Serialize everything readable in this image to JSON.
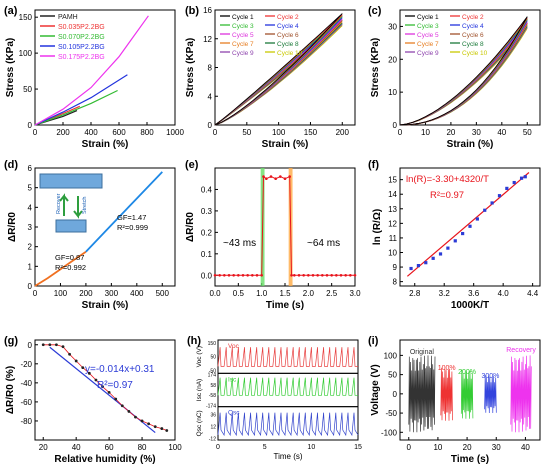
{
  "panels": {
    "a": {
      "label": "(a)"
    },
    "b": {
      "label": "(b)"
    },
    "c": {
      "label": "(c)"
    },
    "d": {
      "label": "(d)"
    },
    "e": {
      "label": "(e)"
    },
    "f": {
      "label": "(f)"
    },
    "g": {
      "label": "(g)"
    },
    "h": {
      "label": "(h)"
    },
    "i": {
      "label": "(i)"
    }
  },
  "colors": {
    "pamh": "#222222",
    "s0_035": "#ee3333",
    "s0_070": "#33bb33",
    "s0_105": "#2233dd",
    "s0_175": "#ee33ee",
    "fit_red": "#e8141c",
    "fit_blue": "#2b3bd6",
    "gf_orange": "#f07020",
    "gf_blue": "#1e88e5",
    "voc": "#e84040",
    "isc": "#33cc33",
    "qsc": "#3344cc"
  },
  "chart_data": [
    {
      "id": "a",
      "type": "line",
      "xlabel": "Strain (%)",
      "ylabel": "Stress (KPa)",
      "xlim": [
        0,
        1000
      ],
      "ylim": [
        0,
        160
      ],
      "xticks": [
        "0",
        "200",
        "400",
        "600",
        "800",
        "1000"
      ],
      "yticks": [
        "0",
        "50",
        "100",
        "150"
      ],
      "legend": "top-left",
      "series": [
        {
          "name": "PAMH",
          "x": [
            0,
            100,
            200,
            300
          ],
          "y": [
            0,
            6,
            12,
            20
          ]
        },
        {
          "name": "S0.035P2.2BG",
          "x": [
            0,
            100,
            200,
            320
          ],
          "y": [
            0,
            8,
            16,
            26
          ]
        },
        {
          "name": "S0.070P2.2BG",
          "x": [
            0,
            200,
            400,
            590
          ],
          "y": [
            0,
            14,
            30,
            48
          ]
        },
        {
          "name": "S0.105P2.2BG",
          "x": [
            0,
            200,
            400,
            660
          ],
          "y": [
            0,
            18,
            38,
            70
          ]
        },
        {
          "name": "S0.175P2.2BG",
          "x": [
            0,
            200,
            400,
            600,
            810
          ],
          "y": [
            0,
            22,
            52,
            95,
            152
          ]
        }
      ]
    },
    {
      "id": "b",
      "type": "line",
      "xlabel": "Strain (%)",
      "ylabel": "Stress (KPa)",
      "xlim": [
        0,
        220
      ],
      "ylim": [
        0,
        16
      ],
      "xticks": [
        "0",
        "50",
        "100",
        "150",
        "200"
      ],
      "yticks": [
        "0",
        "4",
        "8",
        "12",
        "16"
      ],
      "legend": "top-left",
      "series_names": [
        "Cycle 1",
        "Cycle 2",
        "Cycle 3",
        "Cycle 4",
        "Cycle 5",
        "Cycle 6",
        "Cycle 7",
        "Cycle 8",
        "Cycle 9",
        "Cycle 10"
      ],
      "series_colors": [
        "#000000",
        "#ee3333",
        "#33bb33",
        "#2233dd",
        "#dd33dd",
        "#a0522d",
        "#e67e22",
        "#1b7a3a",
        "#8e44ad",
        "#c8c800"
      ],
      "peak_stress": 15.5,
      "max_strain": 200
    },
    {
      "id": "c",
      "type": "line",
      "xlabel": "Strain (%)",
      "ylabel": "Stress (KPa)",
      "xlim": [
        0,
        55
      ],
      "ylim": [
        0,
        35
      ],
      "xticks": [
        "0",
        "10",
        "20",
        "30",
        "40",
        "50"
      ],
      "yticks": [
        "0",
        "10",
        "20",
        "30"
      ],
      "legend": "top-left",
      "series_names": [
        "Cycle 1",
        "Cycle 2",
        "Cycle 3",
        "Cycle 4",
        "Cycle 5",
        "Cycle 6",
        "Cycle 7",
        "Cycle 8",
        "Cycle 9",
        "Cycle 10"
      ],
      "series_colors": [
        "#000000",
        "#ee3333",
        "#33bb33",
        "#2233dd",
        "#dd33dd",
        "#a0522d",
        "#e67e22",
        "#1b7a3a",
        "#8e44ad",
        "#c8c800"
      ],
      "peak_stress": 33,
      "max_strain": 50
    },
    {
      "id": "d",
      "type": "line",
      "xlabel": "Strain (%)",
      "ylabel": "ΔR/R0",
      "xlim": [
        0,
        550
      ],
      "ylim": [
        0,
        6
      ],
      "xticks": [
        "0",
        "100",
        "200",
        "300",
        "400",
        "500"
      ],
      "yticks": [
        "0",
        "1",
        "2",
        "3",
        "4",
        "5",
        "6"
      ],
      "annotations": [
        "GF=1.47",
        "R²=0.999",
        "GF=0.87",
        "R²=0.992",
        "Recover",
        "Stretch"
      ],
      "series": [
        {
          "x": [
            0,
            50,
            100,
            150,
            200
          ],
          "y": [
            0,
            0.4,
            0.85,
            1.3,
            1.74
          ]
        },
        {
          "x": [
            200,
            300,
            400,
            500
          ],
          "y": [
            1.74,
            3.1,
            4.45,
            5.8
          ]
        }
      ]
    },
    {
      "id": "e",
      "type": "line",
      "xlabel": "Time (s)",
      "ylabel": "ΔR/R0",
      "xlim": [
        0,
        3
      ],
      "ylim": [
        -0.05,
        0.5
      ],
      "xticks": [
        "0.0",
        "0.5",
        "1.0",
        "1.5",
        "2.0",
        "2.5",
        "3.0"
      ],
      "yticks": [
        "0.0",
        "0.1",
        "0.2",
        "0.3",
        "0.4"
      ],
      "annotations": [
        "~43 ms",
        "~64 ms"
      ],
      "x": [
        0,
        0.1,
        0.2,
        0.3,
        0.4,
        0.5,
        0.6,
        0.7,
        0.8,
        0.9,
        1.0,
        1.04,
        1.1,
        1.2,
        1.3,
        1.4,
        1.5,
        1.6,
        1.64,
        1.7,
        1.8,
        1.9,
        2.0,
        2.1,
        2.2,
        2.3,
        2.4,
        2.5,
        2.6,
        2.7,
        2.8,
        2.9,
        3.0
      ],
      "y": [
        0,
        0,
        0,
        0,
        0,
        0,
        0,
        0,
        0,
        0,
        0,
        0.46,
        0.45,
        0.46,
        0.45,
        0.46,
        0.45,
        0.46,
        0,
        0,
        0,
        0,
        0,
        0,
        0,
        0,
        0,
        0,
        0,
        0,
        0,
        0,
        0
      ]
    },
    {
      "id": "f",
      "type": "scatter",
      "xlabel": "1000K/T",
      "ylabel": "ln (R/Ω)",
      "xlim": [
        2.6,
        4.5
      ],
      "ylim": [
        7.7,
        15.8
      ],
      "xticks": [
        "2.8",
        "3.2",
        "3.6",
        "4.0",
        "4.4"
      ],
      "yticks": [
        "8",
        "9",
        "10",
        "11",
        "12",
        "13",
        "14",
        "15"
      ],
      "annotations": [
        "ln(R)=-3.30+4320/T",
        "R²=0.97"
      ],
      "fit": {
        "slope": 4.32,
        "intercept": -3.3
      },
      "x": [
        2.75,
        2.85,
        2.95,
        3.05,
        3.15,
        3.25,
        3.35,
        3.45,
        3.55,
        3.65,
        3.75,
        3.85,
        3.95,
        4.05,
        4.15,
        4.25,
        4.3
      ],
      "y": [
        8.9,
        9.1,
        9.3,
        9.6,
        9.9,
        10.3,
        10.8,
        11.3,
        11.8,
        12.3,
        12.9,
        13.4,
        13.9,
        14.4,
        14.8,
        15.1,
        15.2
      ]
    },
    {
      "id": "g",
      "type": "scatter",
      "xlabel": "Relative humidity (%)",
      "ylabel": "ΔR/R0 (%)",
      "xlim": [
        15,
        100
      ],
      "ylim": [
        -1.0,
        0.05
      ],
      "xticks": [
        "20",
        "40",
        "60",
        "80",
        "100"
      ],
      "yticks": [
        "0",
        "-20",
        "-40",
        "-60",
        "-80"
      ],
      "annotations": [
        "y=-0.014x+0.31",
        "R²=0.97"
      ],
      "fit": {
        "slope": -0.014,
        "intercept": 0.31
      },
      "x": [
        20,
        24,
        28,
        32,
        36,
        40,
        44,
        48,
        52,
        56,
        60,
        64,
        68,
        72,
        76,
        80,
        84,
        88,
        92,
        95
      ],
      "y": [
        0,
        0,
        0,
        -0.02,
        -0.1,
        -0.17,
        -0.24,
        -0.3,
        -0.37,
        -0.44,
        -0.5,
        -0.57,
        -0.64,
        -0.7,
        -0.76,
        -0.8,
        -0.83,
        -0.86,
        -0.88,
        -0.9
      ]
    },
    {
      "id": "h",
      "type": "line",
      "xlabel": "Time (s)",
      "xlim": [
        0,
        15
      ],
      "xticks": [
        "0",
        "5",
        "10",
        "15"
      ],
      "subplots": [
        {
          "ylabel": "Voc (V)",
          "label": "Voc",
          "yticks": [
            "-50",
            "0",
            "50",
            "100",
            "150"
          ],
          "ylim": [
            -70,
            170
          ],
          "high": 118,
          "low": -20,
          "cycles": 23
        },
        {
          "ylabel": "Isc (nA)",
          "label": "Isc",
          "yticks": [
            "-174",
            "-116",
            "-58",
            "0",
            "58",
            "116",
            "174"
          ],
          "ylim": [
            -190,
            190
          ],
          "high": 140,
          "low": -60,
          "cycles": 23
        },
        {
          "ylabel": "Qsc (nC)",
          "label": "Qsc",
          "yticks": [
            "-12",
            "0",
            "12",
            "24",
            "36",
            "48"
          ],
          "ylim": [
            -15,
            52
          ],
          "high": 40,
          "low": -5,
          "cycles": 23
        }
      ]
    },
    {
      "id": "i",
      "type": "line",
      "xlabel": "Time (s)",
      "ylabel": "Voltage (V)",
      "xlim": [
        -3,
        45
      ],
      "ylim": [
        -120,
        140
      ],
      "xticks": [
        "0",
        "10",
        "20",
        "30",
        "40"
      ],
      "yticks": [
        "-100",
        "-50",
        "0",
        "50",
        "100"
      ],
      "segments": [
        {
          "label": "Original",
          "start": 0,
          "end": 9,
          "amplitude": 100,
          "color": "#333333"
        },
        {
          "label": "100%",
          "start": 11,
          "end": 15,
          "amplitude": 70,
          "color": "#ee3333"
        },
        {
          "label": "200%",
          "start": 18,
          "end": 22,
          "amplitude": 65,
          "color": "#33cc33"
        },
        {
          "label": "300%",
          "start": 26,
          "end": 30,
          "amplitude": 50,
          "color": "#3344dd"
        },
        {
          "label": "Recovery",
          "start": 35,
          "end": 42,
          "amplitude": 100,
          "color": "#ee33ee"
        }
      ]
    }
  ]
}
